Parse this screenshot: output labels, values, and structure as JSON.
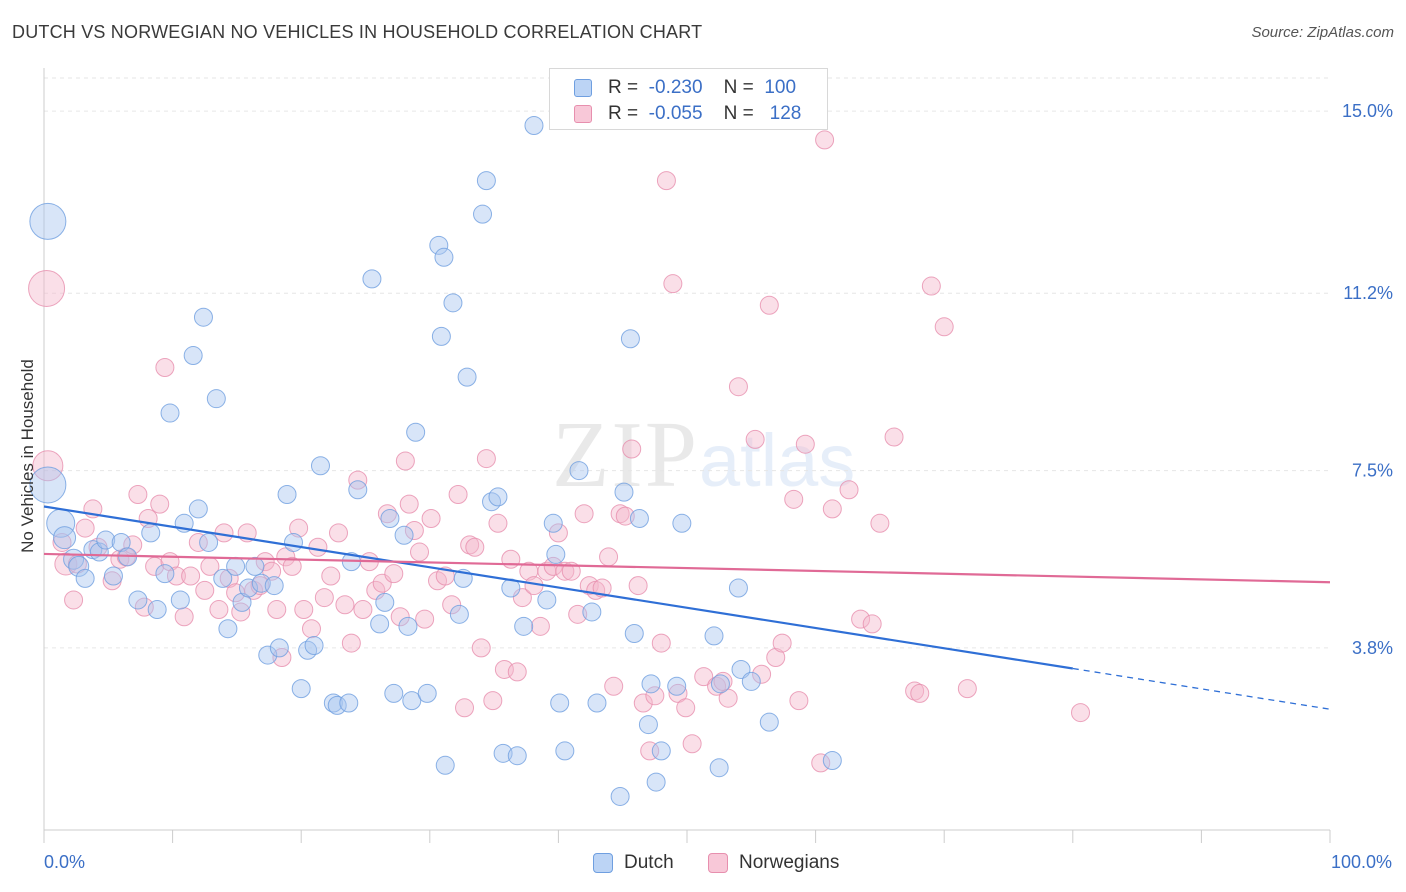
{
  "title": "DUTCH VS NORWEGIAN NO VEHICLES IN HOUSEHOLD CORRELATION CHART",
  "source": "Source: ZipAtlas.com",
  "watermark": {
    "zip": "ZIP",
    "atlas": "atlas"
  },
  "colors": {
    "dutch_fill": "#a9c6f0",
    "dutch_stroke": "#6f9fe0",
    "dutch_line": "#2f6fd6",
    "norw_fill": "#f4b8cc",
    "norw_stroke": "#e78fae",
    "norw_line": "#e06a96",
    "tick_text": "#3b6fc6",
    "grid": "#e6e6e6"
  },
  "legend": {
    "rows": [
      {
        "r_label": "R =",
        "r_value": "-0.230",
        "n_label": "N =",
        "n_value": "100",
        "series": "Dutch"
      },
      {
        "r_label": "R =",
        "r_value": "-0.055",
        "n_label": "N =",
        "n_value": "128",
        "series": "Norwegians"
      }
    ]
  },
  "bottom_legend": [
    "Dutch",
    "Norwegians"
  ],
  "chart_data": {
    "type": "scatter",
    "title": "DUTCH VS NORWEGIAN NO VEHICLES IN HOUSEHOLD CORRELATION CHART",
    "xlabel": "",
    "ylabel": "No Vehicles in Household",
    "xlim": [
      0,
      100
    ],
    "ylim": [
      0,
      15.9
    ],
    "x_tick_labels": [
      "0.0%",
      "100.0%"
    ],
    "y_ticks": [
      3.8,
      7.5,
      11.2,
      15.0
    ],
    "y_tick_labels": [
      "3.8%",
      "7.5%",
      "11.2%",
      "15.0%"
    ],
    "grid": "horizontal dashed",
    "legend_position": "top-center",
    "series": [
      {
        "name": "Dutch",
        "r": -0.23,
        "n": 100,
        "trend": {
          "x0": 0,
          "y0": 6.75,
          "x1": 80,
          "y1": 3.37,
          "dashed_to": [
            100,
            2.52
          ]
        },
        "points": [
          [
            0.3,
            12.7,
            18
          ],
          [
            0.3,
            7.2,
            18
          ],
          [
            1.3,
            6.4,
            14
          ],
          [
            1.6,
            6.1,
            11
          ],
          [
            2.3,
            5.65,
            10
          ],
          [
            2.7,
            5.5,
            10
          ],
          [
            3.2,
            5.25,
            9
          ],
          [
            3.8,
            5.85,
            9
          ],
          [
            4.3,
            5.8,
            9
          ],
          [
            4.8,
            6.05,
            9
          ],
          [
            5.4,
            5.3,
            9
          ],
          [
            6.0,
            6.0,
            9
          ],
          [
            6.5,
            5.7,
            9
          ],
          [
            7.3,
            4.8,
            9
          ],
          [
            8.3,
            6.2,
            9
          ],
          [
            8.8,
            4.6,
            9
          ],
          [
            9.4,
            5.35,
            9
          ],
          [
            9.8,
            8.7,
            9
          ],
          [
            10.6,
            4.8,
            9
          ],
          [
            10.9,
            6.4,
            9
          ],
          [
            11.6,
            9.9,
            9
          ],
          [
            12.0,
            6.7,
            9
          ],
          [
            12.4,
            10.7,
            9
          ],
          [
            12.8,
            6.0,
            9
          ],
          [
            13.4,
            9.0,
            9
          ],
          [
            13.9,
            5.25,
            9
          ],
          [
            14.3,
            4.2,
            9
          ],
          [
            14.9,
            5.5,
            9
          ],
          [
            15.4,
            4.75,
            9
          ],
          [
            15.9,
            5.05,
            9
          ],
          [
            16.4,
            5.5,
            9
          ],
          [
            16.9,
            5.15,
            9
          ],
          [
            17.4,
            3.65,
            9
          ],
          [
            17.9,
            5.1,
            9
          ],
          [
            18.3,
            3.8,
            9
          ],
          [
            18.9,
            7.0,
            9
          ],
          [
            19.4,
            6.0,
            9
          ],
          [
            20.0,
            2.95,
            9
          ],
          [
            20.5,
            3.75,
            9
          ],
          [
            21.0,
            3.85,
            9
          ],
          [
            21.5,
            7.6,
            9
          ],
          [
            22.5,
            2.65,
            9
          ],
          [
            22.8,
            2.6,
            9
          ],
          [
            23.7,
            2.65,
            9
          ],
          [
            23.9,
            5.6,
            9
          ],
          [
            24.4,
            7.1,
            9
          ],
          [
            25.5,
            11.5,
            9
          ],
          [
            26.1,
            4.3,
            9
          ],
          [
            26.5,
            4.75,
            9
          ],
          [
            26.9,
            6.5,
            9
          ],
          [
            27.2,
            2.85,
            9
          ],
          [
            28.0,
            6.15,
            9
          ],
          [
            28.3,
            4.25,
            9
          ],
          [
            28.6,
            2.7,
            9
          ],
          [
            28.9,
            8.3,
            9
          ],
          [
            29.8,
            2.85,
            9
          ],
          [
            30.7,
            12.2,
            9
          ],
          [
            31.1,
            11.95,
            9
          ],
          [
            30.9,
            10.3,
            9
          ],
          [
            31.2,
            1.35,
            9
          ],
          [
            31.8,
            11.0,
            9
          ],
          [
            32.3,
            4.5,
            9
          ],
          [
            32.6,
            5.25,
            9
          ],
          [
            32.9,
            9.45,
            9
          ],
          [
            34.1,
            12.85,
            9
          ],
          [
            34.4,
            13.55,
            9
          ],
          [
            34.8,
            6.85,
            9
          ],
          [
            35.3,
            6.95,
            9
          ],
          [
            35.7,
            1.6,
            9
          ],
          [
            36.3,
            5.05,
            9
          ],
          [
            36.8,
            1.55,
            9
          ],
          [
            37.3,
            4.25,
            9
          ],
          [
            38.1,
            14.7,
            9
          ],
          [
            39.1,
            4.8,
            9
          ],
          [
            39.6,
            6.4,
            9
          ],
          [
            39.8,
            5.75,
            9
          ],
          [
            40.1,
            2.65,
            9
          ],
          [
            40.5,
            1.65,
            9
          ],
          [
            41.6,
            7.5,
            9
          ],
          [
            42.6,
            4.55,
            9
          ],
          [
            43.0,
            2.65,
            9
          ],
          [
            44.8,
            0.7,
            9
          ],
          [
            45.1,
            7.05,
            9
          ],
          [
            45.6,
            10.25,
            9
          ],
          [
            45.9,
            4.1,
            9
          ],
          [
            46.3,
            6.5,
            9
          ],
          [
            47.0,
            2.2,
            9
          ],
          [
            47.6,
            1.0,
            9
          ],
          [
            48.0,
            1.65,
            9
          ],
          [
            49.2,
            3.0,
            9
          ],
          [
            49.6,
            6.4,
            9
          ],
          [
            52.1,
            4.05,
            9
          ],
          [
            52.5,
            1.3,
            9
          ],
          [
            54.2,
            3.35,
            9
          ],
          [
            55.0,
            3.1,
            9
          ],
          [
            56.4,
            2.25,
            9
          ],
          [
            61.3,
            1.45,
            9
          ],
          [
            47.2,
            3.05,
            9
          ],
          [
            52.6,
            3.05,
            9
          ],
          [
            54.0,
            5.05,
            9
          ]
        ]
      },
      {
        "name": "Norwegians",
        "r": -0.055,
        "n": 128,
        "trend": {
          "x0": 0,
          "y0": 5.76,
          "x1": 100,
          "y1": 5.17
        },
        "points": [
          [
            0.2,
            11.3,
            18
          ],
          [
            0.3,
            7.6,
            15
          ],
          [
            1.4,
            6.0,
            9
          ],
          [
            1.7,
            5.55,
            11
          ],
          [
            2.3,
            4.8,
            9
          ],
          [
            2.6,
            5.55,
            9
          ],
          [
            3.2,
            6.3,
            9
          ],
          [
            3.8,
            6.7,
            9
          ],
          [
            4.2,
            5.9,
            9
          ],
          [
            5.3,
            5.2,
            9
          ],
          [
            5.9,
            5.65,
            9
          ],
          [
            6.4,
            5.7,
            9
          ],
          [
            6.9,
            5.95,
            9
          ],
          [
            7.3,
            7.0,
            9
          ],
          [
            7.8,
            4.65,
            9
          ],
          [
            8.1,
            6.5,
            9
          ],
          [
            8.6,
            5.5,
            9
          ],
          [
            9.0,
            6.8,
            9
          ],
          [
            9.4,
            9.65,
            9
          ],
          [
            9.8,
            5.6,
            9
          ],
          [
            10.3,
            5.3,
            9
          ],
          [
            10.9,
            4.45,
            9
          ],
          [
            11.4,
            5.3,
            9
          ],
          [
            12.0,
            6.0,
            9
          ],
          [
            12.5,
            5.0,
            9
          ],
          [
            12.9,
            5.5,
            9
          ],
          [
            13.6,
            4.6,
            9
          ],
          [
            14.0,
            6.2,
            9
          ],
          [
            14.4,
            5.25,
            9
          ],
          [
            14.9,
            4.95,
            9
          ],
          [
            15.3,
            4.55,
            9
          ],
          [
            15.8,
            6.2,
            9
          ],
          [
            16.3,
            5.0,
            9
          ],
          [
            16.8,
            5.1,
            9
          ],
          [
            17.2,
            5.6,
            9
          ],
          [
            17.7,
            5.4,
            9
          ],
          [
            18.1,
            4.6,
            9
          ],
          [
            18.5,
            3.6,
            9
          ],
          [
            18.8,
            5.7,
            9
          ],
          [
            19.3,
            5.5,
            9
          ],
          [
            19.8,
            6.3,
            9
          ],
          [
            20.2,
            4.6,
            9
          ],
          [
            20.8,
            4.2,
            9
          ],
          [
            21.3,
            5.9,
            9
          ],
          [
            21.8,
            4.85,
            9
          ],
          [
            22.3,
            5.3,
            9
          ],
          [
            22.9,
            6.2,
            9
          ],
          [
            23.4,
            4.7,
            9
          ],
          [
            23.9,
            3.9,
            9
          ],
          [
            24.4,
            7.3,
            9
          ],
          [
            24.8,
            4.6,
            9
          ],
          [
            25.3,
            5.6,
            9
          ],
          [
            25.8,
            5.0,
            9
          ],
          [
            26.3,
            5.15,
            9
          ],
          [
            26.7,
            6.6,
            9
          ],
          [
            27.2,
            5.35,
            9
          ],
          [
            27.7,
            4.45,
            9
          ],
          [
            28.1,
            7.7,
            9
          ],
          [
            28.4,
            6.8,
            9
          ],
          [
            28.8,
            6.25,
            9
          ],
          [
            29.2,
            5.8,
            9
          ],
          [
            29.6,
            4.4,
            9
          ],
          [
            30.1,
            6.5,
            9
          ],
          [
            30.6,
            5.2,
            9
          ],
          [
            31.2,
            5.3,
            9
          ],
          [
            31.7,
            4.7,
            9
          ],
          [
            32.2,
            7.0,
            9
          ],
          [
            32.7,
            2.55,
            9
          ],
          [
            33.1,
            5.95,
            9
          ],
          [
            33.5,
            5.9,
            9
          ],
          [
            34.0,
            3.8,
            9
          ],
          [
            34.4,
            7.75,
            9
          ],
          [
            34.9,
            2.7,
            9
          ],
          [
            35.3,
            6.4,
            9
          ],
          [
            35.8,
            3.35,
            9
          ],
          [
            36.3,
            5.65,
            9
          ],
          [
            36.8,
            3.3,
            9
          ],
          [
            37.2,
            4.85,
            9
          ],
          [
            37.7,
            5.4,
            9
          ],
          [
            38.1,
            5.1,
            9
          ],
          [
            38.6,
            4.25,
            9
          ],
          [
            39.1,
            5.4,
            9
          ],
          [
            39.6,
            5.5,
            9
          ],
          [
            40.0,
            6.2,
            9
          ],
          [
            40.5,
            5.4,
            9
          ],
          [
            41.0,
            5.4,
            9
          ],
          [
            41.5,
            4.5,
            9
          ],
          [
            42.0,
            6.6,
            9
          ],
          [
            42.4,
            5.1,
            9
          ],
          [
            42.9,
            5.0,
            9
          ],
          [
            43.4,
            5.05,
            9
          ],
          [
            43.9,
            5.7,
            9
          ],
          [
            44.3,
            3.0,
            9
          ],
          [
            44.8,
            6.6,
            9
          ],
          [
            45.2,
            6.55,
            9
          ],
          [
            45.7,
            7.95,
            9
          ],
          [
            46.2,
            5.1,
            9
          ],
          [
            46.6,
            2.65,
            9
          ],
          [
            47.1,
            1.65,
            9
          ],
          [
            47.5,
            2.8,
            9
          ],
          [
            48.0,
            3.9,
            9
          ],
          [
            48.4,
            13.55,
            9
          ],
          [
            48.9,
            11.4,
            9
          ],
          [
            49.3,
            2.85,
            9
          ],
          [
            49.9,
            2.55,
            9
          ],
          [
            50.4,
            1.8,
            9
          ],
          [
            51.3,
            3.2,
            9
          ],
          [
            52.3,
            3.0,
            9
          ],
          [
            52.8,
            3.1,
            9
          ],
          [
            53.2,
            2.75,
            9
          ],
          [
            54.0,
            9.25,
            9
          ],
          [
            55.3,
            8.15,
            9
          ],
          [
            55.8,
            3.25,
            9
          ],
          [
            56.4,
            10.95,
            9
          ],
          [
            56.9,
            3.6,
            9
          ],
          [
            57.4,
            3.9,
            9
          ],
          [
            58.3,
            6.9,
            9
          ],
          [
            58.7,
            2.7,
            9
          ],
          [
            59.2,
            8.05,
            9
          ],
          [
            60.4,
            1.4,
            9
          ],
          [
            61.3,
            6.7,
            9
          ],
          [
            62.6,
            7.1,
            9
          ],
          [
            63.5,
            4.4,
            9
          ],
          [
            64.4,
            4.3,
            9
          ],
          [
            65.0,
            6.4,
            9
          ],
          [
            66.1,
            8.2,
            9
          ],
          [
            67.7,
            2.9,
            9
          ],
          [
            68.1,
            2.85,
            9
          ],
          [
            69.0,
            11.35,
            9
          ],
          [
            70.0,
            10.5,
            9
          ],
          [
            71.8,
            2.95,
            9
          ],
          [
            80.6,
            2.45,
            9
          ],
          [
            60.7,
            14.4,
            9
          ]
        ]
      }
    ]
  }
}
